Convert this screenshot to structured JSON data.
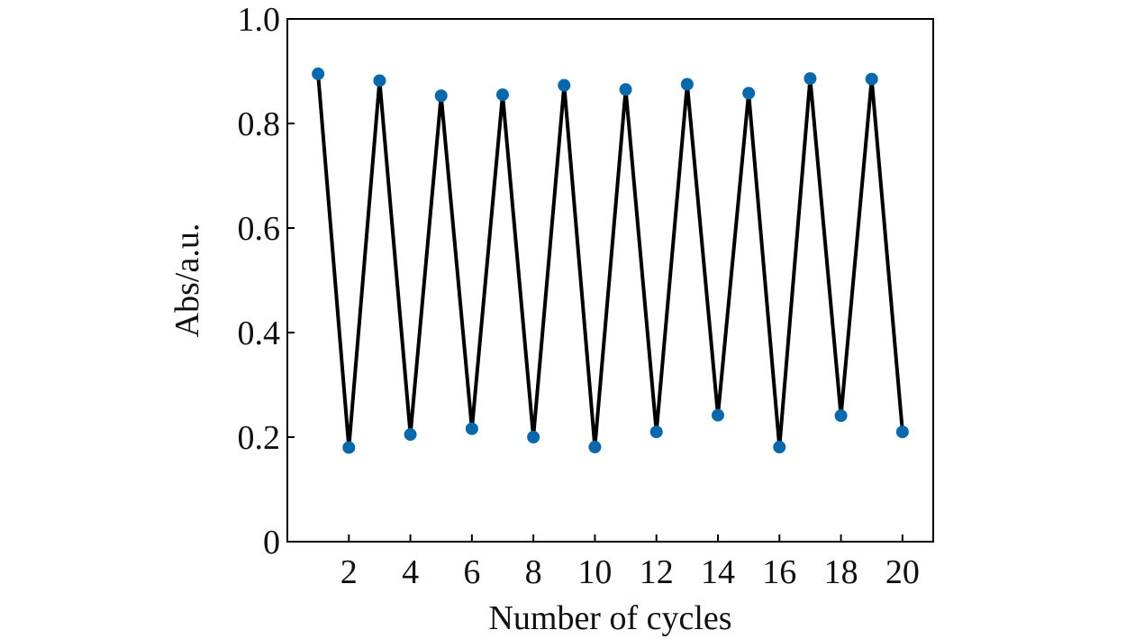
{
  "chart_data": {
    "type": "line",
    "title": "",
    "xlabel": "Number of cycles",
    "ylabel": "Abs/a.u.",
    "xlim": [
      0,
      21
    ],
    "ylim": [
      0,
      1.0
    ],
    "x_ticks": [
      2,
      4,
      6,
      8,
      10,
      12,
      14,
      16,
      18,
      20
    ],
    "x_tick_labels": [
      "2",
      "4",
      "6",
      "8",
      "10",
      "12",
      "14",
      "16",
      "18",
      "20"
    ],
    "y_ticks": [
      0,
      0.2,
      0.4,
      0.6,
      0.8,
      1.0
    ],
    "y_tick_labels": [
      "0",
      "0.2",
      "0.4",
      "0.6",
      "0.8",
      "1.0"
    ],
    "grid": false,
    "legend": "none",
    "colors": {
      "line": "#000000",
      "marker": "#0868ac",
      "axis": "#000000"
    },
    "series": [
      {
        "x": [
          1,
          2,
          3,
          4,
          5,
          6,
          7,
          8,
          9,
          10,
          11,
          12,
          13,
          14,
          15,
          16,
          17,
          18,
          19,
          20
        ],
        "values": [
          0.895,
          0.18,
          0.882,
          0.205,
          0.853,
          0.216,
          0.855,
          0.2,
          0.873,
          0.181,
          0.865,
          0.21,
          0.875,
          0.242,
          0.858,
          0.181,
          0.886,
          0.241,
          0.885,
          0.21
        ]
      }
    ]
  }
}
